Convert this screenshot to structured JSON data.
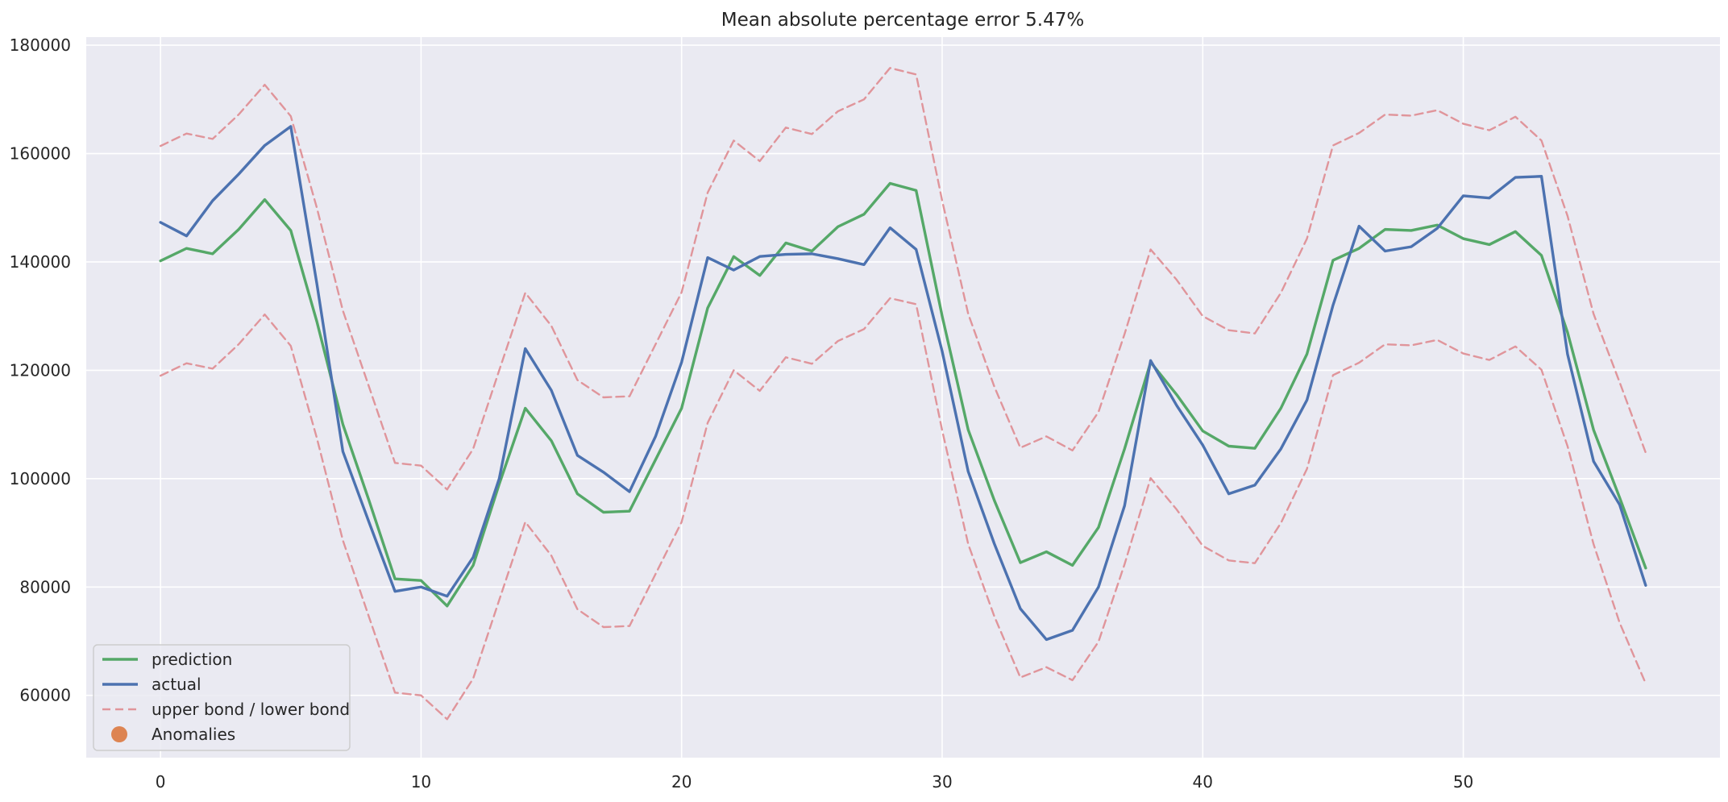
{
  "chart_data": {
    "type": "line",
    "title": "Mean absolute percentage error 5.47%",
    "xlabel": "",
    "ylabel": "",
    "xlim": [
      -2.85,
      59.85
    ],
    "ylim": [
      48500,
      181500
    ],
    "xticks": [
      0,
      10,
      20,
      30,
      40,
      50
    ],
    "yticks": [
      60000,
      80000,
      100000,
      120000,
      140000,
      160000,
      180000
    ],
    "xtick_labels": [
      "0",
      "10",
      "20",
      "30",
      "40",
      "50"
    ],
    "ytick_labels": [
      "60000",
      "80000",
      "100000",
      "120000",
      "140000",
      "160000",
      "180000"
    ],
    "grid": true,
    "legend_position": "lower-left",
    "colors": {
      "background": "#eaeaf2",
      "grid": "#ffffff",
      "prediction": "#55a868",
      "actual": "#4c72b0",
      "bounds": "#e0959b",
      "anomalies": "#dd8452"
    },
    "legend": [
      {
        "key": "prediction",
        "label": "prediction",
        "style": "line"
      },
      {
        "key": "actual",
        "label": "actual",
        "style": "line"
      },
      {
        "key": "bounds",
        "label": "upper bond / lower bond",
        "style": "dashed"
      },
      {
        "key": "anomalies",
        "label": "Anomalies",
        "style": "marker"
      }
    ],
    "x": [
      0,
      1,
      2,
      3,
      4,
      5,
      6,
      7,
      8,
      9,
      10,
      11,
      12,
      13,
      14,
      15,
      16,
      17,
      18,
      19,
      20,
      21,
      22,
      23,
      24,
      25,
      26,
      27,
      28,
      29,
      30,
      31,
      32,
      33,
      34,
      35,
      36,
      37,
      38,
      39,
      40,
      41,
      42,
      43,
      44,
      45,
      46,
      47,
      48,
      49,
      50,
      51,
      52,
      53,
      54,
      55,
      56,
      57
    ],
    "series": [
      {
        "name": "prediction",
        "style": "solid",
        "values": [
          140200,
          142500,
          141500,
          146000,
          151500,
          145800,
          129000,
          110000,
          96000,
          81500,
          81200,
          76500,
          84000,
          99000,
          113000,
          107000,
          97200,
          93800,
          94000,
          103500,
          113000,
          131500,
          141000,
          137500,
          143500,
          142000,
          146500,
          148800,
          154500,
          153200,
          130000,
          109000,
          96000,
          84500,
          86500,
          84000,
          91000,
          105500,
          121500,
          115500,
          108800,
          106000,
          105600,
          113000,
          123000,
          140300,
          142500,
          146000,
          145800,
          146800,
          144300,
          143200,
          145600,
          141200,
          127000,
          109000,
          96500,
          83500
        ]
      },
      {
        "name": "actual",
        "style": "solid",
        "values": [
          147300,
          144800,
          151300,
          156200,
          161500,
          165000,
          136000,
          105000,
          92000,
          79200,
          80000,
          78300,
          85500,
          100000,
          124000,
          116300,
          104300,
          101200,
          97600,
          107800,
          121500,
          140800,
          138500,
          141000,
          141400,
          141500,
          140600,
          139500,
          146300,
          142300,
          123500,
          101300,
          88000,
          76000,
          70300,
          72000,
          80000,
          95000,
          121800,
          113500,
          106200,
          97200,
          98800,
          105500,
          114500,
          132000,
          146600,
          142000,
          142800,
          146200,
          152200,
          151800,
          155600,
          155800,
          123000,
          103200,
          95200,
          80300
        ]
      },
      {
        "name": "upper bond",
        "style": "dashed",
        "values": [
          161400,
          163700,
          162700,
          167200,
          172700,
          166900,
          150000,
          131000,
          117000,
          102900,
          102400,
          98000,
          105500,
          120000,
          134300,
          128200,
          118200,
          115000,
          115200,
          124800,
          134400,
          152800,
          162400,
          158600,
          164800,
          163600,
          167800,
          170000,
          175800,
          174600,
          151300,
          130400,
          117000,
          105700,
          107800,
          105200,
          112300,
          126700,
          142300,
          136700,
          130000,
          127400,
          126800,
          134300,
          144300,
          161500,
          163800,
          167200,
          167000,
          168000,
          165500,
          164300,
          166800,
          162400,
          148500,
          130400,
          117800,
          104800
        ]
      },
      {
        "name": "lower bond",
        "style": "dashed",
        "values": [
          119000,
          121300,
          120300,
          124800,
          130300,
          124500,
          107500,
          88600,
          74500,
          60500,
          60000,
          55600,
          63100,
          77600,
          92000,
          85800,
          75900,
          72600,
          72800,
          82400,
          92000,
          110300,
          120000,
          116200,
          122400,
          121200,
          125400,
          127600,
          133300,
          132200,
          108900,
          87900,
          74600,
          63300,
          65200,
          62800,
          69900,
          84200,
          100100,
          94300,
          87600,
          84900,
          84400,
          91800,
          101800,
          119100,
          121400,
          124800,
          124600,
          125600,
          123100,
          121900,
          124400,
          120100,
          106000,
          87900,
          73400,
          62200
        ]
      }
    ],
    "anomalies": []
  }
}
